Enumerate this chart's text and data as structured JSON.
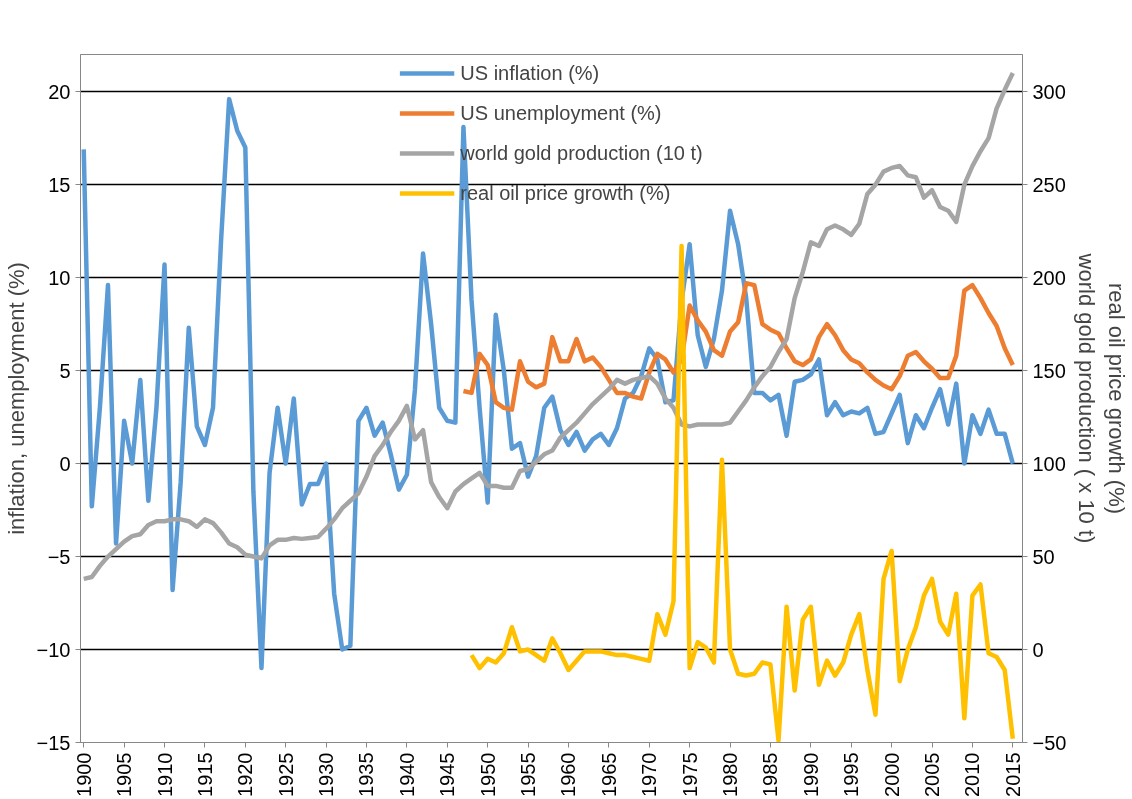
{
  "chart_data": {
    "type": "line",
    "ylabel": "inflation, unemployment (%)",
    "y2label": "real oil price growth (%)\nworld gold production ( x 10 t)",
    "xlim": [
      1899.6,
      2016.2
    ],
    "xticks": [
      1900,
      1905,
      1910,
      1915,
      1920,
      1925,
      1930,
      1935,
      1940,
      1945,
      1950,
      1955,
      1960,
      1965,
      1970,
      1975,
      1980,
      1985,
      1990,
      1995,
      2000,
      2005,
      2010,
      2015
    ],
    "x": [
      1900,
      1901,
      1902,
      1903,
      1904,
      1905,
      1906,
      1907,
      1908,
      1909,
      1910,
      1911,
      1912,
      1913,
      1914,
      1915,
      1916,
      1917,
      1918,
      1919,
      1920,
      1921,
      1922,
      1923,
      1924,
      1925,
      1926,
      1927,
      1928,
      1929,
      1930,
      1931,
      1932,
      1933,
      1934,
      1935,
      1936,
      1937,
      1938,
      1939,
      1940,
      1941,
      1942,
      1943,
      1944,
      1945,
      1946,
      1947,
      1948,
      1949,
      1950,
      1951,
      1952,
      1953,
      1954,
      1955,
      1956,
      1957,
      1958,
      1959,
      1960,
      1961,
      1962,
      1963,
      1964,
      1965,
      1966,
      1967,
      1968,
      1969,
      1970,
      1971,
      1972,
      1973,
      1974,
      1975,
      1976,
      1977,
      1978,
      1979,
      1980,
      1981,
      1982,
      1983,
      1984,
      1985,
      1986,
      1987,
      1988,
      1989,
      1990,
      1991,
      1992,
      1993,
      1994,
      1995,
      1996,
      1997,
      1998,
      1999,
      2000,
      2001,
      2002,
      2003,
      2004,
      2005,
      2006,
      2007,
      2008,
      2009,
      2010,
      2011,
      2012,
      2013,
      2014,
      2015
    ],
    "ylim": [
      -15,
      22
    ],
    "yticks": [
      -15,
      -10,
      -5,
      0,
      5,
      10,
      15,
      20
    ],
    "y2lim": [
      -50,
      320
    ],
    "y2ticks": [
      -50,
      0,
      50,
      100,
      150,
      200,
      250,
      300
    ],
    "grid": "y",
    "legend": "top",
    "marker": "none",
    "line_style": "solid",
    "series": [
      {
        "name": "US inflation (%)",
        "color": "#5b9bd5",
        "values": [
          16.9,
          -2.3,
          3,
          9.6,
          -4.3,
          2.3,
          0,
          4.5,
          -2,
          3,
          10.7,
          -6.8,
          -1,
          7.3,
          2,
          1,
          3,
          12,
          19.6,
          17.9,
          17,
          -1.5,
          -11,
          -0.5,
          3,
          0,
          3.5,
          -2.2,
          -1.1,
          -1.1,
          0,
          -7,
          -10,
          -9.8,
          2.3,
          3,
          1.5,
          2.2,
          0.5,
          -1.4,
          -0.6,
          4,
          11.3,
          7.5,
          3,
          2.3,
          2.2,
          18.1,
          8.8,
          3,
          -2.1,
          8,
          5,
          0.8,
          1.1,
          -0.7,
          0.4,
          3,
          3.6,
          1.8,
          1,
          1.7,
          0.7,
          1.3,
          1.6,
          1,
          1.9,
          3.5,
          3.8,
          4.7,
          6.2,
          5.6,
          3.3,
          3.4,
          8.7,
          11.8,
          6.9,
          5.2,
          6.7,
          9.3,
          13.6,
          11.8,
          8.9,
          3.8,
          3.8,
          3.4,
          3.7,
          1.5,
          4.4,
          4.5,
          4.8,
          5.6,
          2.6,
          3.3,
          2.6,
          2.8,
          2.7,
          3,
          1.6,
          1.7,
          2.7,
          3.7,
          1.1,
          2.6,
          1.9,
          3,
          4,
          2.1,
          4.3,
          0,
          2.6,
          1.6,
          2.9,
          1.6,
          1.6,
          0
        ]
      },
      {
        "name": "US unemployment (%)",
        "color": "#ed7d31",
        "x": [
          1947,
          1948,
          1949,
          1950,
          1951,
          1952,
          1953,
          1954,
          1955,
          1956,
          1957,
          1958,
          1959,
          1960,
          1961,
          1962,
          1963,
          1964,
          1965,
          1966,
          1967,
          1968,
          1969,
          1970,
          1971,
          1972,
          1973,
          1974,
          1975,
          1976,
          1977,
          1978,
          1979,
          1980,
          1981,
          1982,
          1983,
          1984,
          1985,
          1986,
          1987,
          1988,
          1989,
          1990,
          1991,
          1992,
          1993,
          1994,
          1995,
          1996,
          1997,
          1998,
          1999,
          2000,
          2001,
          2002,
          2003,
          2004,
          2005,
          2006,
          2007,
          2008,
          2009,
          2010,
          2011,
          2012,
          2013,
          2014,
          2015
        ],
        "values": [
          3.9,
          3.8,
          5.9,
          5.3,
          3.3,
          3,
          2.9,
          5.5,
          4.4,
          4.1,
          4.3,
          6.8,
          5.5,
          5.5,
          6.7,
          5.5,
          5.7,
          5.2,
          4.5,
          3.8,
          3.8,
          3.6,
          3.5,
          4.9,
          5.9,
          5.6,
          4.9,
          5.6,
          8.5,
          7.7,
          7.1,
          6.1,
          5.8,
          7.1,
          7.6,
          9.7,
          9.6,
          7.5,
          7.2,
          7,
          6.2,
          5.5,
          5.3,
          5.6,
          6.8,
          7.5,
          6.9,
          6.1,
          5.6,
          5.4,
          4.9,
          4.5,
          4.2,
          4,
          4.7,
          5.8,
          6,
          5.5,
          5.1,
          4.6,
          4.6,
          5.8,
          9.3,
          9.6,
          8.9,
          8.1,
          7.4,
          6.2,
          5.3
        ]
      },
      {
        "name": "world gold production (10 t)",
        "color": "#a5a5a5",
        "axis": "y2",
        "values": [
          38,
          39,
          45,
          50,
          54,
          58,
          61,
          62,
          67,
          69,
          69,
          70,
          70,
          69,
          66,
          70,
          68,
          63,
          57,
          55,
          51,
          50,
          49,
          56,
          59,
          59,
          60,
          59.5,
          60,
          60.5,
          65,
          70,
          76,
          80,
          84,
          93,
          104,
          110,
          117,
          123,
          131,
          113,
          118,
          90,
          82,
          76,
          85,
          89,
          92,
          95,
          88,
          88,
          87,
          87,
          96,
          97,
          101,
          105,
          107,
          114,
          118,
          122,
          127,
          132,
          136,
          140,
          145,
          143,
          145,
          146,
          147,
          143,
          135,
          130,
          121,
          120,
          121,
          121,
          121,
          121,
          122,
          128,
          134,
          141,
          147,
          152,
          160,
          167,
          189,
          203,
          219,
          217,
          226,
          228,
          226,
          223,
          229,
          245,
          250,
          257,
          259,
          260,
          255,
          254,
          243,
          247,
          238,
          236,
          230,
          250,
          260,
          268,
          275,
          291,
          301,
          310
        ]
      },
      {
        "name": "real oil price growth (%)",
        "color": "#ffc000",
        "axis": "y2",
        "x": [
          1948,
          1949,
          1950,
          1951,
          1952,
          1953,
          1954,
          1955,
          1956,
          1957,
          1958,
          1959,
          1960,
          1961,
          1962,
          1963,
          1964,
          1965,
          1966,
          1967,
          1968,
          1969,
          1970,
          1971,
          1972,
          1973,
          1974,
          1975,
          1976,
          1977,
          1978,
          1979,
          1980,
          1981,
          1982,
          1983,
          1984,
          1985,
          1986,
          1987,
          1988,
          1989,
          1990,
          1991,
          1992,
          1993,
          1994,
          1995,
          1996,
          1997,
          1998,
          1999,
          2000,
          2001,
          2002,
          2003,
          2004,
          2005,
          2006,
          2007,
          2008,
          2009,
          2010,
          2011,
          2012,
          2013,
          2014,
          2015
        ],
        "values": [
          -3,
          -10,
          -5,
          -7,
          -2,
          12,
          -1,
          0,
          -3,
          -6,
          6,
          -2,
          -11,
          -6,
          -1,
          -1,
          -1,
          -2,
          -3,
          -3,
          -4,
          -5,
          -6,
          19,
          8,
          26,
          217,
          -10,
          4,
          1,
          -7,
          102,
          0,
          -13,
          -14,
          -13,
          -7,
          -8,
          -49,
          23,
          -22,
          16,
          23,
          -19,
          -6,
          -14,
          -7,
          8,
          19,
          -11,
          -35,
          38,
          53,
          -17,
          0,
          12,
          29,
          38,
          15,
          8,
          30,
          -37,
          29,
          35,
          -2,
          -4,
          -11,
          -48
        ]
      }
    ]
  }
}
